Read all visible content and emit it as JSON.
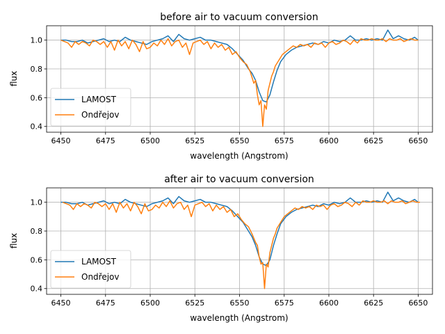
{
  "chart_data": [
    {
      "type": "line",
      "title": "before air to vacuum conversion",
      "xlabel": "wavelength (Angstrom)",
      "ylabel": "flux",
      "xlim": [
        6442,
        6658
      ],
      "ylim": [
        0.36,
        1.1
      ],
      "xticks": [
        6450,
        6475,
        6500,
        6525,
        6550,
        6575,
        6600,
        6625,
        6650
      ],
      "yticks": [
        0.4,
        0.6,
        0.8,
        1.0
      ],
      "xtick_labels": [
        "6450",
        "6475",
        "6500",
        "6525",
        "6550",
        "6575",
        "6600",
        "6625",
        "6650"
      ],
      "ytick_labels": [
        "0.4",
        "0.6",
        "0.8",
        "1.0"
      ],
      "grid": true,
      "legend": "lower-left",
      "series": [
        {
          "name": "LAMOST",
          "color": "#1f77b4",
          "x": [
            6450,
            6453,
            6456,
            6459,
            6462,
            6465,
            6468,
            6471,
            6474,
            6477,
            6480,
            6483,
            6486,
            6489,
            6492,
            6495,
            6498,
            6501,
            6504,
            6507,
            6510,
            6513,
            6516,
            6519,
            6522,
            6525,
            6528,
            6531,
            6534,
            6537,
            6540,
            6543,
            6546,
            6549,
            6552,
            6555,
            6557,
            6559,
            6561,
            6563,
            6565,
            6567,
            6569,
            6571,
            6573,
            6576,
            6579,
            6582,
            6585,
            6588,
            6591,
            6594,
            6597,
            6600,
            6603,
            6606,
            6609,
            6612,
            6615,
            6618,
            6621,
            6624,
            6627,
            6630,
            6633,
            6636,
            6639,
            6642,
            6645,
            6648,
            6650
          ],
          "y": [
            1.0,
            1.0,
            0.99,
            0.99,
            1.0,
            0.98,
            0.99,
            1.0,
            1.01,
            0.99,
            1.0,
            0.99,
            1.02,
            1.0,
            0.99,
            0.98,
            0.97,
            0.99,
            1.0,
            1.01,
            1.03,
            0.99,
            1.04,
            1.01,
            1.0,
            1.01,
            1.02,
            1.0,
            1.0,
            0.99,
            0.98,
            0.97,
            0.94,
            0.9,
            0.86,
            0.8,
            0.77,
            0.72,
            0.64,
            0.58,
            0.57,
            0.62,
            0.71,
            0.79,
            0.85,
            0.9,
            0.93,
            0.95,
            0.96,
            0.97,
            0.98,
            0.97,
            0.99,
            0.98,
            1.0,
            0.99,
            1.0,
            1.03,
            1.0,
            1.0,
            1.01,
            1.0,
            1.01,
            1.0,
            1.07,
            1.01,
            1.03,
            1.01,
            1.0,
            1.02,
            1.0
          ]
        },
        {
          "name": "Ondřejov",
          "color": "#ff7f0e",
          "x": [
            6450,
            6452,
            6454,
            6456,
            6458,
            6460,
            6462,
            6464,
            6466,
            6468,
            6470,
            6472,
            6474,
            6476,
            6478,
            6480,
            6482,
            6484,
            6486,
            6488,
            6490,
            6492,
            6494,
            6496,
            6498,
            6500,
            6502,
            6504,
            6506,
            6508,
            6510,
            6512,
            6514,
            6516,
            6518,
            6520,
            6522,
            6524,
            6526,
            6528,
            6530,
            6532,
            6534,
            6536,
            6538,
            6540,
            6542,
            6544,
            6546,
            6548,
            6550,
            6552,
            6554,
            6556,
            6558,
            6559,
            6560,
            6561,
            6562,
            6563,
            6564,
            6565,
            6566,
            6567,
            6568,
            6569,
            6570,
            6572,
            6574,
            6576,
            6578,
            6580,
            6582,
            6584,
            6586,
            6588,
            6590,
            6592,
            6594,
            6596,
            6598,
            6600,
            6602,
            6604,
            6606,
            6608,
            6610,
            6612,
            6614,
            6616,
            6618,
            6620,
            6622,
            6624,
            6626,
            6628,
            6630,
            6632,
            6634,
            6636,
            6638,
            6640,
            6642,
            6644,
            6646,
            6648,
            6650
          ],
          "y": [
            1.0,
            0.99,
            0.98,
            0.95,
            0.99,
            0.97,
            0.99,
            0.98,
            0.96,
            1.0,
            0.99,
            0.97,
            0.99,
            0.95,
            0.99,
            0.93,
            1.0,
            0.96,
            0.99,
            0.94,
            1.0,
            0.97,
            0.92,
            0.99,
            0.94,
            0.95,
            0.98,
            0.96,
            1.0,
            0.97,
            1.01,
            0.96,
            0.99,
            1.0,
            0.95,
            0.98,
            0.9,
            0.98,
            0.99,
            1.0,
            0.97,
            0.99,
            0.94,
            0.98,
            0.95,
            0.97,
            0.93,
            0.95,
            0.9,
            0.92,
            0.88,
            0.85,
            0.83,
            0.78,
            0.7,
            0.72,
            0.62,
            0.55,
            0.58,
            0.4,
            0.55,
            0.52,
            0.65,
            0.7,
            0.75,
            0.78,
            0.82,
            0.86,
            0.9,
            0.92,
            0.94,
            0.96,
            0.95,
            0.97,
            0.96,
            0.97,
            0.95,
            0.98,
            0.97,
            0.98,
            0.95,
            0.98,
            0.99,
            0.97,
            0.98,
            1.0,
            0.99,
            0.97,
            1.0,
            0.98,
            1.01,
            1.0,
            1.0,
            1.01,
            1.0,
            1.0,
            1.01,
            0.99,
            1.01,
            1.0,
            1.0,
            1.01,
            0.99,
            1.0,
            1.01,
            1.0,
            1.0
          ]
        }
      ]
    },
    {
      "type": "line",
      "title": "after air to vacuum conversion",
      "xlabel": "wavelength (Angstrom)",
      "ylabel": "flux",
      "xlim": [
        6442,
        6658
      ],
      "ylim": [
        0.36,
        1.1
      ],
      "xticks": [
        6450,
        6475,
        6500,
        6525,
        6550,
        6575,
        6600,
        6625,
        6650
      ],
      "yticks": [
        0.4,
        0.6,
        0.8,
        1.0
      ],
      "xtick_labels": [
        "6450",
        "6475",
        "6500",
        "6525",
        "6550",
        "6575",
        "6600",
        "6625",
        "6650"
      ],
      "ytick_labels": [
        "0.4",
        "0.6",
        "0.8",
        "1.0"
      ],
      "grid": true,
      "legend": "lower-left",
      "series": [
        {
          "name": "LAMOST",
          "color": "#1f77b4",
          "x": [
            6450,
            6453,
            6456,
            6459,
            6462,
            6465,
            6468,
            6471,
            6474,
            6477,
            6480,
            6483,
            6486,
            6489,
            6492,
            6495,
            6498,
            6501,
            6504,
            6507,
            6510,
            6513,
            6516,
            6519,
            6522,
            6525,
            6528,
            6531,
            6534,
            6537,
            6540,
            6543,
            6546,
            6549,
            6552,
            6555,
            6557,
            6559,
            6561,
            6563,
            6565,
            6567,
            6569,
            6571,
            6573,
            6576,
            6579,
            6582,
            6585,
            6588,
            6591,
            6594,
            6597,
            6600,
            6603,
            6606,
            6609,
            6612,
            6615,
            6618,
            6621,
            6624,
            6627,
            6630,
            6633,
            6636,
            6639,
            6642,
            6645,
            6648,
            6650
          ],
          "y": [
            1.0,
            1.0,
            0.99,
            0.99,
            1.0,
            0.98,
            0.99,
            1.0,
            1.01,
            0.99,
            1.0,
            0.99,
            1.02,
            1.0,
            0.99,
            0.98,
            0.97,
            0.99,
            1.0,
            1.01,
            1.03,
            0.99,
            1.04,
            1.01,
            1.0,
            1.01,
            1.02,
            1.0,
            1.0,
            0.99,
            0.98,
            0.97,
            0.94,
            0.9,
            0.86,
            0.8,
            0.76,
            0.7,
            0.62,
            0.57,
            0.56,
            0.6,
            0.7,
            0.78,
            0.85,
            0.9,
            0.93,
            0.95,
            0.96,
            0.97,
            0.98,
            0.97,
            0.99,
            0.98,
            1.0,
            0.99,
            1.0,
            1.03,
            1.0,
            1.0,
            1.01,
            1.0,
            1.01,
            1.0,
            1.07,
            1.01,
            1.03,
            1.01,
            1.0,
            1.02,
            1.0
          ]
        },
        {
          "name": "Ondřejov",
          "color": "#ff7f0e",
          "x": [
            6451,
            6453,
            6455,
            6457,
            6459,
            6461,
            6463,
            6465,
            6467,
            6469,
            6471,
            6473,
            6475,
            6477,
            6479,
            6481,
            6483,
            6485,
            6487,
            6489,
            6491,
            6493,
            6495,
            6497,
            6499,
            6501,
            6503,
            6505,
            6507,
            6509,
            6511,
            6513,
            6515,
            6517,
            6519,
            6521,
            6523,
            6525,
            6527,
            6529,
            6531,
            6533,
            6535,
            6537,
            6539,
            6541,
            6543,
            6545,
            6547,
            6549,
            6551,
            6553,
            6555,
            6557,
            6559,
            6560,
            6561,
            6562,
            6563,
            6564,
            6565,
            6566,
            6567,
            6568,
            6569,
            6570,
            6571,
            6573,
            6575,
            6577,
            6579,
            6581,
            6583,
            6585,
            6587,
            6589,
            6591,
            6593,
            6595,
            6597,
            6599,
            6601,
            6603,
            6605,
            6607,
            6609,
            6611,
            6613,
            6615,
            6617,
            6619,
            6621,
            6623,
            6625,
            6627,
            6629,
            6631,
            6633,
            6635,
            6637,
            6639,
            6641,
            6643,
            6645,
            6647,
            6649,
            6651
          ],
          "y": [
            1.0,
            0.99,
            0.98,
            0.95,
            0.99,
            0.97,
            0.99,
            0.98,
            0.96,
            1.0,
            0.99,
            0.97,
            0.99,
            0.95,
            0.99,
            0.93,
            1.0,
            0.96,
            0.99,
            0.94,
            1.0,
            0.97,
            0.92,
            0.99,
            0.94,
            0.95,
            0.98,
            0.96,
            1.0,
            0.97,
            1.01,
            0.96,
            0.99,
            1.0,
            0.95,
            0.98,
            0.9,
            0.98,
            0.99,
            1.0,
            0.97,
            0.99,
            0.94,
            0.98,
            0.95,
            0.97,
            0.93,
            0.95,
            0.9,
            0.92,
            0.88,
            0.85,
            0.83,
            0.78,
            0.72,
            0.7,
            0.62,
            0.57,
            0.58,
            0.4,
            0.57,
            0.55,
            0.65,
            0.7,
            0.75,
            0.78,
            0.82,
            0.86,
            0.9,
            0.92,
            0.94,
            0.96,
            0.95,
            0.97,
            0.96,
            0.97,
            0.95,
            0.98,
            0.97,
            0.98,
            0.95,
            0.98,
            0.99,
            0.97,
            0.98,
            1.0,
            0.99,
            0.97,
            1.0,
            0.98,
            1.01,
            1.0,
            1.0,
            1.01,
            1.0,
            1.0,
            1.01,
            0.99,
            1.01,
            1.0,
            1.0,
            1.01,
            0.99,
            1.0,
            1.01,
            1.0,
            1.0
          ]
        }
      ]
    }
  ]
}
